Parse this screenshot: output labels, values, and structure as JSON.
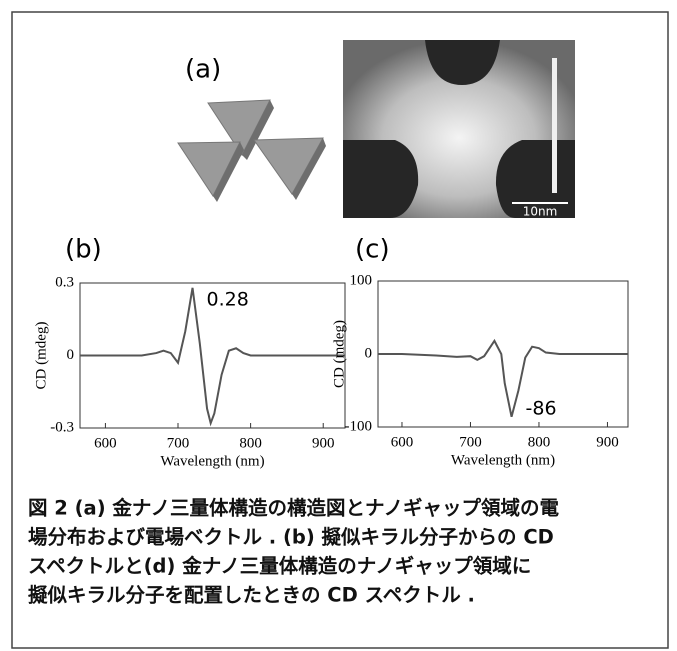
{
  "panel_a": {
    "label": "(a)",
    "scale_bar": "10nm"
  },
  "charts": [
    {
      "type": "line",
      "label": "(b)",
      "xlabel": "Wavelength (nm)",
      "ylabel": "CD (mdeg)",
      "color": "#555555",
      "x": [
        565,
        600,
        650,
        670,
        680,
        690,
        700,
        710,
        720,
        730,
        740,
        745,
        750,
        760,
        770,
        780,
        790,
        800,
        820,
        850,
        900,
        930
      ],
      "values": [
        0,
        0,
        0,
        0.01,
        0.02,
        0.01,
        -0.03,
        0.1,
        0.28,
        0.05,
        -0.22,
        -0.28,
        -0.24,
        -0.08,
        0.02,
        0.03,
        0.01,
        0,
        0,
        0,
        0,
        0
      ],
      "xlim": [
        565,
        930
      ],
      "xticks": [
        600,
        700,
        800,
        900
      ],
      "ylim": [
        -0.3,
        0.3
      ],
      "yticks": [
        0.3,
        0,
        -0.3
      ],
      "label_index": 8
    },
    {
      "type": "line",
      "label": "(c)",
      "xlabel": "Wavelength (nm)",
      "ylabel": "CD (mdeg)",
      "color": "#555555",
      "x": [
        565,
        600,
        650,
        680,
        700,
        710,
        720,
        735,
        745,
        750,
        760,
        770,
        780,
        790,
        800,
        810,
        830,
        860,
        900,
        930
      ],
      "values": [
        0,
        0,
        -2,
        -4,
        -3,
        -8,
        -3,
        18,
        0,
        -40,
        -86,
        -50,
        -5,
        10,
        8,
        2,
        0,
        0,
        0,
        0
      ],
      "xlim": [
        565,
        930
      ],
      "xticks": [
        600,
        700,
        800,
        900
      ],
      "ylim": [
        -100,
        100
      ],
      "yticks": [
        100,
        0,
        -100
      ],
      "label_index": 10
    }
  ],
  "caption": [
    "図 2 (a) 金ナノ三量体構造の構造図とナノギャップ領域の電",
    "場分布および電場ベクトル . (b) 擬似キラル分子からの CD",
    "スペクトルと(d) 金ナノ三量体構造のナノギャップ領域に",
    "擬似キラル分子を配置したときの CD スペクトル ."
  ]
}
